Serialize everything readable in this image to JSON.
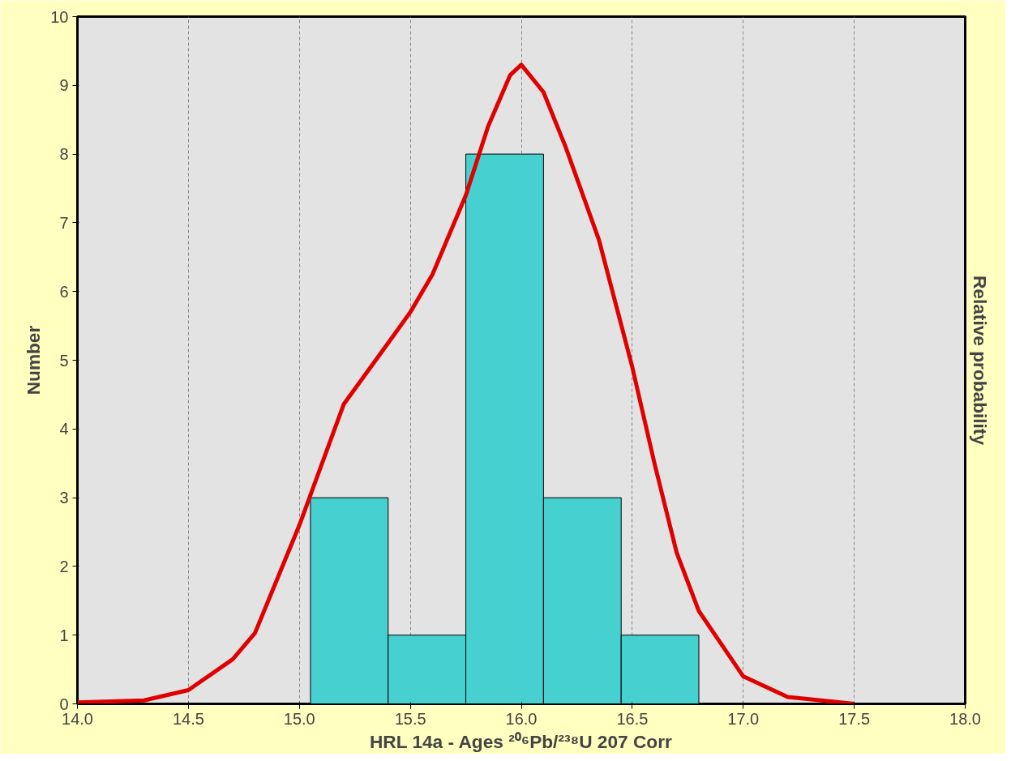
{
  "chart_data": {
    "type": "histogram",
    "xlabel": "HRL 14a - Ages ²⁰⁶Pb/²³⁸U 207 Corr",
    "ylabel": "Number",
    "y2label": "Relative probability",
    "bins": [
      15.05,
      15.4,
      15.75,
      16.1,
      16.45,
      16.8
    ],
    "series": [
      {
        "color": "#46d0d0",
        "values": [
          3,
          1,
          8,
          3,
          1
        ]
      },
      {
        "type": "line",
        "color": "#e00000",
        "x": [
          14.0,
          14.3,
          14.5,
          14.7,
          14.8,
          15.0,
          15.2,
          15.4,
          15.5,
          15.6,
          15.75,
          15.85,
          15.95,
          16.0,
          16.1,
          16.2,
          16.35,
          16.5,
          16.6,
          16.7,
          16.8,
          17.0,
          17.2,
          17.5
        ],
        "values": [
          0.02,
          0.05,
          0.2,
          0.65,
          1.03,
          2.6,
          4.36,
          5.25,
          5.7,
          6.25,
          7.4,
          8.4,
          9.15,
          9.3,
          8.9,
          8.1,
          6.75,
          4.9,
          3.5,
          2.2,
          1.35,
          0.4,
          0.1,
          0.0
        ]
      }
    ],
    "xlim": [
      14.0,
      18.0
    ],
    "xticks": [
      {
        "value": 14,
        "label": "14.0"
      },
      {
        "value": 14.5,
        "label": "14.5"
      },
      {
        "value": 15,
        "label": "15.0"
      },
      {
        "value": 15.5,
        "label": "15.5"
      },
      {
        "value": 16,
        "label": "16.0"
      },
      {
        "value": 16.5,
        "label": "16.5"
      },
      {
        "value": 17,
        "label": "17.0"
      },
      {
        "value": 17.5,
        "label": "17.5"
      },
      {
        "value": 18,
        "label": "18.0"
      }
    ],
    "ylim": [
      0,
      10
    ],
    "yticks": [
      0,
      1,
      2,
      3,
      4,
      5,
      6,
      7,
      8,
      9,
      10
    ],
    "grid": "x",
    "line_style": "solid"
  }
}
